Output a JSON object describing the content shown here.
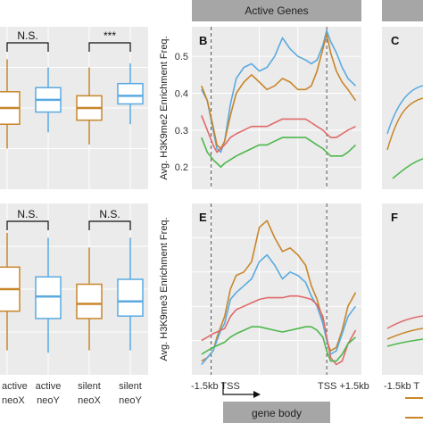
{
  "colors": {
    "panel_bg": "#ebebeb",
    "grid": "#ffffff",
    "strip_bg": "#a6a6a6",
    "x_color": "#c8862a",
    "y_color": "#5aaae0",
    "red": "#e06a6a",
    "green": "#4cb84c"
  },
  "chart_data": [
    {
      "type": "box",
      "panel": "top-left",
      "categories": [
        "active neoX",
        "active neoY",
        "silent neoX",
        "silent neoY"
      ],
      "boxes": [
        {
          "q1": 0.36,
          "median": 0.4,
          "q3": 0.44,
          "whisker_low": 0.3,
          "whisker_high": 0.52,
          "color": "#c8862a"
        },
        {
          "q1": 0.39,
          "median": 0.42,
          "q3": 0.45,
          "whisker_low": 0.34,
          "whisker_high": 0.5,
          "color": "#5aaae0"
        },
        {
          "q1": 0.37,
          "median": 0.4,
          "q3": 0.43,
          "whisker_low": 0.31,
          "whisker_high": 0.5,
          "color": "#c8862a"
        },
        {
          "q1": 0.41,
          "median": 0.43,
          "q3": 0.46,
          "whisker_low": 0.36,
          "whisker_high": 0.51,
          "color": "#5aaae0"
        }
      ],
      "significance": [
        {
          "from": 0,
          "to": 1,
          "label": "N.S."
        },
        {
          "from": 2,
          "to": 3,
          "label": "***"
        }
      ]
    },
    {
      "type": "box",
      "panel": "bottom-left",
      "categories": [
        "active neoX",
        "active neoY",
        "silent neoX",
        "silent neoY"
      ],
      "boxes": [
        {
          "q1": 0.36,
          "median": 0.45,
          "q3": 0.54,
          "whisker_low": 0.2,
          "whisker_high": 0.68,
          "color": "#c8862a"
        },
        {
          "q1": 0.33,
          "median": 0.42,
          "q3": 0.5,
          "whisker_low": 0.19,
          "whisker_high": 0.66,
          "color": "#5aaae0"
        },
        {
          "q1": 0.33,
          "median": 0.39,
          "q3": 0.47,
          "whisker_low": 0.2,
          "whisker_high": 0.62,
          "color": "#c8862a"
        },
        {
          "q1": 0.34,
          "median": 0.4,
          "q3": 0.49,
          "whisker_low": 0.2,
          "whisker_high": 0.66,
          "color": "#5aaae0"
        }
      ],
      "significance": [
        {
          "from": 0,
          "to": 1,
          "label": "N.S."
        },
        {
          "from": 2,
          "to": 3,
          "label": "N.S."
        }
      ]
    },
    {
      "type": "line",
      "panel": "B",
      "strip_title": "Active Genes",
      "ylabel": "Avg. H3K9me2 Enrichment Freq.",
      "ylim": [
        0.14,
        0.58
      ],
      "yticks": [
        0.2,
        0.3,
        0.4,
        0.5
      ],
      "x": [
        -1.5,
        -1.2,
        -0.9,
        -0.7,
        -0.5,
        -0.3,
        0,
        0.3,
        0.7,
        1.1,
        1.5,
        1.9,
        2.3,
        2.7,
        3.1,
        3.5,
        3.9,
        4.2,
        4.5,
        4.8,
        5.0,
        5.2,
        5.5,
        5.8,
        6.1,
        6.5
      ],
      "vlines": [
        -1.0,
        5.0
      ],
      "series": [
        {
          "color": "#5aaae0",
          "values": [
            0.41,
            0.38,
            0.3,
            0.25,
            0.24,
            0.27,
            0.37,
            0.44,
            0.47,
            0.48,
            0.46,
            0.47,
            0.5,
            0.55,
            0.52,
            0.5,
            0.49,
            0.48,
            0.49,
            0.53,
            0.57,
            0.54,
            0.51,
            0.47,
            0.44,
            0.42
          ]
        },
        {
          "color": "#c8862a",
          "values": [
            0.42,
            0.38,
            0.31,
            0.26,
            0.25,
            0.27,
            0.34,
            0.4,
            0.43,
            0.45,
            0.43,
            0.41,
            0.42,
            0.44,
            0.43,
            0.41,
            0.41,
            0.42,
            0.46,
            0.52,
            0.56,
            0.51,
            0.46,
            0.43,
            0.41,
            0.38
          ]
        },
        {
          "color": "#e06a6a",
          "values": [
            0.34,
            0.3,
            0.26,
            0.24,
            0.25,
            0.26,
            0.28,
            0.29,
            0.3,
            0.31,
            0.31,
            0.31,
            0.32,
            0.33,
            0.33,
            0.33,
            0.33,
            0.32,
            0.31,
            0.3,
            0.29,
            0.28,
            0.28,
            0.29,
            0.3,
            0.31
          ]
        },
        {
          "color": "#4cb84c",
          "values": [
            0.28,
            0.24,
            0.22,
            0.21,
            0.2,
            0.21,
            0.22,
            0.23,
            0.24,
            0.25,
            0.26,
            0.26,
            0.27,
            0.28,
            0.28,
            0.28,
            0.28,
            0.27,
            0.26,
            0.25,
            0.24,
            0.23,
            0.23,
            0.23,
            0.24,
            0.26
          ]
        }
      ]
    },
    {
      "type": "line",
      "panel": "E",
      "ylabel": "Avg. H3K9me3 Enrichment Freq.",
      "ylim": [
        0.0,
        1.0
      ],
      "x": [
        -1.5,
        -1.2,
        -0.9,
        -0.7,
        -0.5,
        -0.3,
        0,
        0.3,
        0.7,
        1.1,
        1.5,
        1.9,
        2.3,
        2.7,
        3.1,
        3.5,
        3.9,
        4.2,
        4.5,
        4.8,
        5.0,
        5.2,
        5.5,
        5.8,
        6.1,
        6.5
      ],
      "vlines": [
        -1.0,
        5.0
      ],
      "series": [
        {
          "color": "#c8862a",
          "values": [
            0.08,
            0.1,
            0.14,
            0.22,
            0.28,
            0.34,
            0.5,
            0.58,
            0.6,
            0.66,
            0.86,
            0.9,
            0.8,
            0.72,
            0.74,
            0.7,
            0.64,
            0.52,
            0.44,
            0.32,
            0.2,
            0.14,
            0.16,
            0.26,
            0.4,
            0.48
          ]
        },
        {
          "color": "#5aaae0",
          "values": [
            0.06,
            0.1,
            0.14,
            0.2,
            0.26,
            0.3,
            0.44,
            0.48,
            0.52,
            0.56,
            0.66,
            0.7,
            0.64,
            0.56,
            0.6,
            0.58,
            0.54,
            0.46,
            0.4,
            0.3,
            0.2,
            0.12,
            0.14,
            0.24,
            0.34,
            0.4
          ]
        },
        {
          "color": "#e06a6a",
          "values": [
            0.2,
            0.22,
            0.24,
            0.25,
            0.26,
            0.27,
            0.34,
            0.38,
            0.4,
            0.42,
            0.44,
            0.45,
            0.45,
            0.45,
            0.46,
            0.46,
            0.45,
            0.44,
            0.41,
            0.34,
            0.22,
            0.1,
            0.06,
            0.08,
            0.18,
            0.26
          ]
        },
        {
          "color": "#4cb84c",
          "values": [
            0.12,
            0.14,
            0.16,
            0.17,
            0.18,
            0.19,
            0.22,
            0.24,
            0.26,
            0.28,
            0.28,
            0.27,
            0.26,
            0.25,
            0.26,
            0.27,
            0.28,
            0.28,
            0.26,
            0.22,
            0.14,
            0.08,
            0.08,
            0.12,
            0.18,
            0.22
          ]
        }
      ]
    }
  ],
  "labels": {
    "top_left_sig_1": "N.S.",
    "top_left_sig_2": "***",
    "bottom_left_sig_1": "N.S.",
    "bottom_left_sig_2": "N.S.",
    "strip_title": "Active Genes",
    "panel_B": "B",
    "panel_C": "C",
    "panel_E": "E",
    "panel_F": "F",
    "ylabel_B": "Avg. H3K9me2 Enrichment Freq.",
    "ylabel_E": "Avg. H3K9me3 Enrichment Freq.",
    "ytick_05": "0.5",
    "ytick_04": "0.4",
    "ytick_03": "0.3",
    "ytick_02": "0.2",
    "xcat_1_a": "active",
    "xcat_1_b": "neoX",
    "xcat_2_a": "active",
    "xcat_2_b": "neoY",
    "xcat_3_a": "silent",
    "xcat_3_b": "neoX",
    "xcat_4_a": "silent",
    "xcat_4_b": "neoY",
    "x_left": "-1.5kb TSS",
    "x_right": "TSS +1.5kb",
    "x_far_right": "-1.5kb T",
    "gene_body": "gene body"
  }
}
